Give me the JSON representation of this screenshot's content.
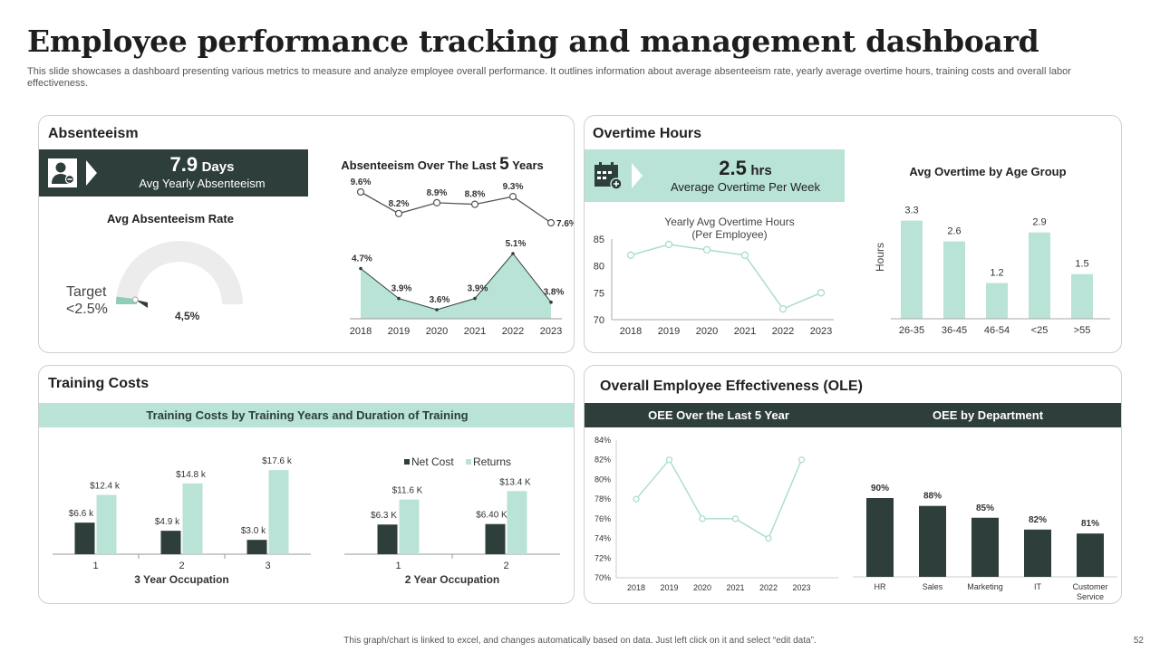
{
  "header": {
    "title": "Employee performance tracking and management dashboard",
    "subtitle": "This slide showcases a dashboard presenting various metrics to measure and analyze employee overall performance. It outlines information about average absenteeism rate, yearly average overtime hours, training costs and overall labor effectiveness."
  },
  "absenteeism": {
    "title": "Absenteeism",
    "kpi_value": "7.9",
    "kpi_unit": "Days",
    "kpi_label": "Avg Yearly Absenteeism",
    "gauge_title": "Avg Absenteeism Rate",
    "target_line1": "Target",
    "target_line2": "<2.5%",
    "gauge_value_label": "4,5%"
  },
  "overtime": {
    "title": "Overtime Hours",
    "kpi_value": "2.5",
    "kpi_unit": "hrs",
    "kpi_label": "Average Overtime Per Week"
  },
  "training": {
    "title": "Training Costs",
    "band": "Training Costs by Training Years and Duration of Training",
    "chart3_label": "3 Year Occupation",
    "chart2_label": "2 Year Occupation"
  },
  "ole": {
    "title": "Overall Employee Effectiveness (OLE)",
    "band_left": "OEE Over the Last 5 Year",
    "band_right": "OEE by Department"
  },
  "footer": {
    "note": "This graph/chart is linked to excel, and changes automatically based on data. Just left click on it and select “edit data”.",
    "page": "52"
  },
  "colors": {
    "dark": "#2d3e3b",
    "mint": "#b8e3d6",
    "line": "#555555",
    "mintline": "#a8dccb"
  },
  "chart_data": [
    {
      "id": "gauge",
      "type": "gauge",
      "title": "Avg Absenteeism Rate",
      "value": 4.5,
      "target": 2.5,
      "value_label": "4,5%"
    },
    {
      "id": "absent5",
      "type": "line",
      "title_pre": "Absenteeism Over The Last",
      "title_num": "5",
      "title_post": "Years",
      "categories": [
        "2018",
        "2019",
        "2020",
        "2021",
        "2022",
        "2023"
      ],
      "series": [
        {
          "name": "Top",
          "values": [
            9.6,
            8.2,
            8.9,
            8.8,
            9.3,
            7.6
          ],
          "labels": [
            "9.6%",
            "8.2%",
            "8.9%",
            "8.8%",
            "9.3%",
            "7.6%"
          ]
        },
        {
          "name": "Bottom",
          "values": [
            4.7,
            3.9,
            3.6,
            3.9,
            5.1,
            3.8
          ],
          "labels": [
            "4.7%",
            "3.9%",
            "3.6%",
            "3.9%",
            "5.1%",
            "3.8%"
          ]
        }
      ]
    },
    {
      "id": "overtimeYearly",
      "type": "line",
      "title_line1": "Yearly Avg Overtime Hours",
      "title_line2": "(Per Employee)",
      "categories": [
        "2018",
        "2019",
        "2020",
        "2021",
        "2022",
        "2023"
      ],
      "values": [
        82,
        84,
        83,
        82,
        72,
        75
      ],
      "ylim": [
        70,
        85
      ],
      "yticks": [
        "70",
        "75",
        "80",
        "85"
      ]
    },
    {
      "id": "overtimeAge",
      "type": "bar",
      "title": "Avg Overtime by Age Group",
      "ylabel": "Hours",
      "categories": [
        "26-35",
        "36-45",
        "46-54",
        "<25",
        ">55"
      ],
      "values": [
        3.3,
        2.6,
        1.2,
        2.9,
        1.5
      ],
      "labels": [
        "3.3",
        "2.6",
        "1.2",
        "2.9",
        "1.5"
      ],
      "ylim": [
        0,
        3.5
      ]
    },
    {
      "id": "train3",
      "type": "bar",
      "xlabel": "3 Year Occupation",
      "categories": [
        "1",
        "2",
        "3"
      ],
      "series": [
        {
          "name": "Net Cost",
          "values": [
            6.6,
            4.9,
            3.0
          ],
          "labels": [
            "$6.6 k",
            "$4.9 k",
            "$3.0 k"
          ]
        },
        {
          "name": "Returns",
          "values": [
            12.4,
            14.8,
            17.6
          ],
          "labels": [
            "$12.4 k",
            "$14.8 k",
            "$17.6 k"
          ]
        }
      ],
      "ylim": [
        0,
        18
      ]
    },
    {
      "id": "train2",
      "type": "bar",
      "xlabel": "2 Year Occupation",
      "categories": [
        "1",
        "2"
      ],
      "legend": [
        "Net Cost",
        "Returns"
      ],
      "series": [
        {
          "name": "Net Cost",
          "values": [
            6.3,
            6.4
          ],
          "labels": [
            "$6.3 K",
            "$6.40 K"
          ]
        },
        {
          "name": "Returns",
          "values": [
            11.6,
            13.4
          ],
          "labels": [
            "$11.6 K",
            "$13.4 K"
          ]
        }
      ],
      "ylim": [
        0,
        15
      ]
    },
    {
      "id": "oee5",
      "type": "line",
      "title": "OEE Over the Last 5 Year",
      "categories": [
        "2018",
        "2019",
        "2020",
        "2021",
        "2022",
        "2023"
      ],
      "values": [
        78,
        82,
        76,
        76,
        74,
        82
      ],
      "ylim": [
        70,
        84
      ],
      "yticks": [
        "70%",
        "72%",
        "74%",
        "76%",
        "78%",
        "80%",
        "82%",
        "84%"
      ]
    },
    {
      "id": "oeeDept",
      "type": "bar",
      "title": "OEE by Department",
      "categories": [
        "HR",
        "Sales",
        "Marketing",
        "IT",
        "Customer Service"
      ],
      "cat_lines": [
        [
          "HR"
        ],
        [
          "Sales"
        ],
        [
          "Marketing"
        ],
        [
          "IT"
        ],
        [
          "Customer",
          "Service"
        ]
      ],
      "values": [
        90,
        88,
        85,
        82,
        81
      ],
      "labels": [
        "90%",
        "88%",
        "85%",
        "82%",
        "81%"
      ],
      "ylim": [
        0,
        100
      ]
    }
  ]
}
